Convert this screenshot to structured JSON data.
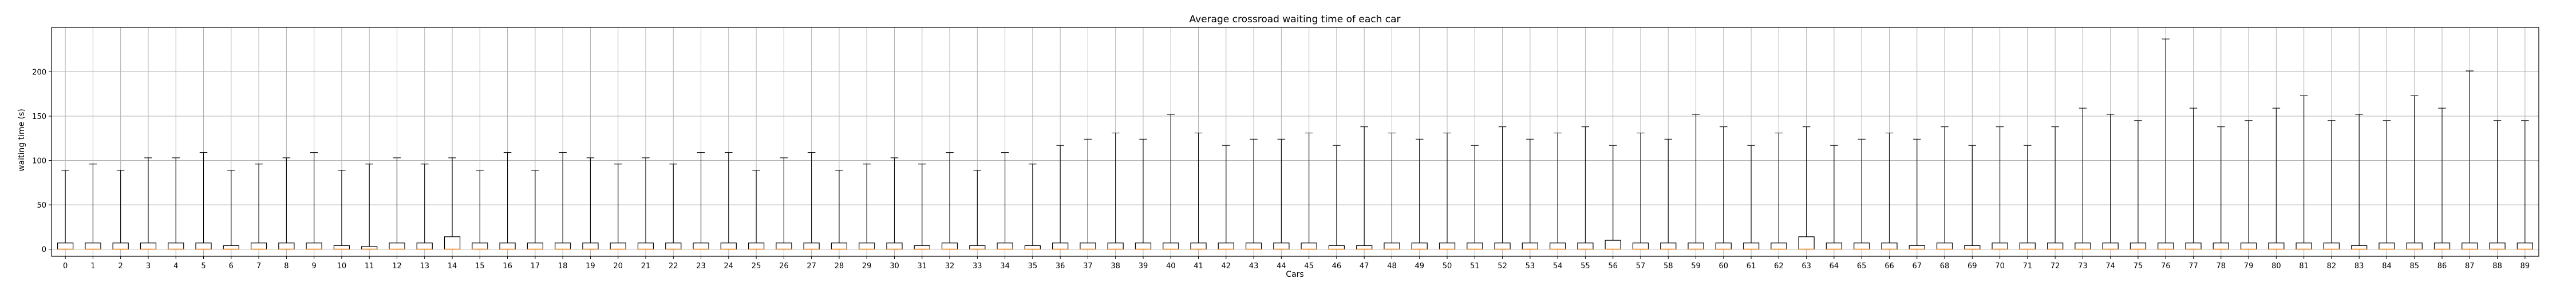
{
  "chart_data": {
    "type": "box",
    "title": "Average crossroad waiting time of each car",
    "xlabel": "Cars",
    "ylabel": "waiting time (s)",
    "ylim": [
      -8,
      250
    ],
    "yticks": [
      0,
      50,
      100,
      150,
      200
    ],
    "grid": true,
    "median_color": "#ff8c1a",
    "categories": [
      "0",
      "1",
      "2",
      "3",
      "4",
      "5",
      "6",
      "7",
      "8",
      "9",
      "10",
      "11",
      "12",
      "13",
      "14",
      "15",
      "16",
      "17",
      "18",
      "19",
      "20",
      "21",
      "22",
      "23",
      "24",
      "25",
      "26",
      "27",
      "28",
      "29",
      "30",
      "31",
      "32",
      "33",
      "34",
      "35",
      "36",
      "37",
      "38",
      "39",
      "40",
      "41",
      "42",
      "43",
      "44",
      "45",
      "46",
      "47",
      "48",
      "49",
      "50",
      "51",
      "52",
      "53",
      "54",
      "55",
      "56",
      "57",
      "58",
      "59",
      "60",
      "61",
      "62",
      "63",
      "64",
      "65",
      "66",
      "67",
      "68",
      "69",
      "70",
      "71",
      "72",
      "73",
      "74",
      "75",
      "76",
      "77",
      "78",
      "79",
      "80",
      "81",
      "82",
      "83",
      "84",
      "85",
      "86",
      "87",
      "88",
      "89"
    ],
    "whisker_max": [
      89,
      96,
      89,
      103,
      103,
      109,
      89,
      96,
      103,
      109,
      89,
      96,
      103,
      96,
      103,
      89,
      109,
      89,
      109,
      103,
      96,
      103,
      96,
      109,
      109,
      89,
      103,
      109,
      89,
      96,
      103,
      96,
      109,
      89,
      109,
      96,
      117,
      124,
      131,
      124,
      152,
      131,
      117,
      124,
      124,
      131,
      117,
      138,
      131,
      124,
      131,
      117,
      138,
      124,
      131,
      138,
      117,
      131,
      124,
      152,
      138,
      117,
      131,
      138,
      117,
      124,
      131,
      124,
      138,
      117,
      138,
      117,
      138,
      159,
      152,
      145,
      237,
      159,
      138,
      145,
      159,
      173,
      145,
      152,
      145,
      173,
      159,
      201,
      145,
      145
    ],
    "q1": [
      0,
      0,
      0,
      0,
      0,
      0,
      0,
      0,
      0,
      0,
      0,
      0,
      0,
      0,
      0,
      0,
      0,
      0,
      0,
      0,
      0,
      0,
      0,
      0,
      0,
      0,
      0,
      0,
      0,
      0,
      0,
      0,
      0,
      0,
      0,
      0,
      0,
      0,
      0,
      0,
      0,
      0,
      0,
      0,
      0,
      0,
      0,
      0,
      0,
      0,
      0,
      0,
      0,
      0,
      0,
      0,
      0,
      0,
      0,
      0,
      0,
      0,
      0,
      0,
      0,
      0,
      0,
      0,
      0,
      0,
      0,
      0,
      0,
      0,
      0,
      0,
      0,
      0,
      0,
      0,
      0,
      0,
      0,
      0,
      0,
      0,
      0,
      0,
      0,
      0
    ],
    "median": [
      0,
      0,
      0,
      0,
      0,
      0,
      0,
      0,
      0,
      0,
      0,
      0,
      0,
      0,
      0,
      0,
      0,
      0,
      0,
      0,
      0,
      0,
      0,
      0,
      0,
      0,
      0,
      0,
      0,
      0,
      0,
      0,
      0,
      0,
      0,
      0,
      0,
      0,
      0,
      0,
      0,
      0,
      0,
      0,
      0,
      0,
      0,
      0,
      0,
      0,
      0,
      0,
      0,
      0,
      0,
      0,
      0,
      0,
      0,
      0,
      0,
      0,
      0,
      0,
      0,
      0,
      0,
      0,
      0,
      0,
      0,
      0,
      0,
      0,
      0,
      0,
      0,
      0,
      0,
      0,
      0,
      0,
      0,
      0,
      0,
      0,
      0,
      0,
      0,
      0
    ],
    "q3": [
      7,
      7,
      7,
      7,
      7,
      7,
      4,
      7,
      7,
      7,
      4,
      3,
      7,
      7,
      14,
      7,
      7,
      7,
      7,
      7,
      7,
      7,
      7,
      7,
      7,
      7,
      7,
      7,
      7,
      7,
      7,
      4,
      7,
      4,
      7,
      4,
      7,
      7,
      7,
      7,
      7,
      7,
      7,
      7,
      7,
      7,
      4,
      4,
      7,
      7,
      7,
      7,
      7,
      7,
      7,
      7,
      10,
      7,
      7,
      7,
      7,
      7,
      7,
      14,
      7,
      7,
      7,
      4,
      7,
      4,
      7,
      7,
      7,
      7,
      7,
      7,
      7,
      7,
      7,
      7,
      7,
      7,
      7,
      4,
      7,
      7,
      7,
      7,
      7,
      7
    ]
  }
}
